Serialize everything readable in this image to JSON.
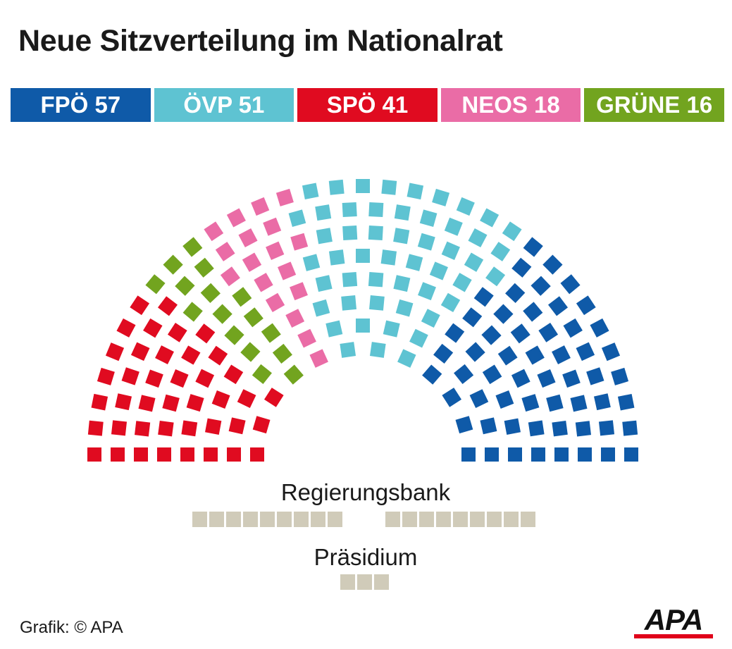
{
  "title": "Neue Sitzverteilung im Nationalrat",
  "chart_data": {
    "type": "parliament",
    "title": "Neue Sitzverteilung im Nationalrat",
    "total_seats": 183,
    "parties": [
      {
        "name": "FPÖ",
        "seats": 57,
        "label": "FPÖ 57",
        "color": "#0f5aa8"
      },
      {
        "name": "ÖVP",
        "seats": 51,
        "label": "ÖVP 51",
        "color": "#5ec3d2"
      },
      {
        "name": "SPÖ",
        "seats": 41,
        "label": "SPÖ 41",
        "color": "#e00b20"
      },
      {
        "name": "NEOS",
        "seats": 18,
        "label": "NEOS 18",
        "color": "#ea6ca6"
      },
      {
        "name": "GRÜNE",
        "seats": 16,
        "label": "GRÜNE 16",
        "color": "#72a41f"
      }
    ],
    "regierungsbank": {
      "label": "Regierungsbank",
      "seats_left": 9,
      "seats_right": 9,
      "color": "#d0cbb9"
    },
    "praesidium": {
      "label": "Präsidium",
      "seats": 3,
      "color": "#d0cbb9"
    }
  },
  "source": "Grafik: © APA",
  "logo": "APA"
}
